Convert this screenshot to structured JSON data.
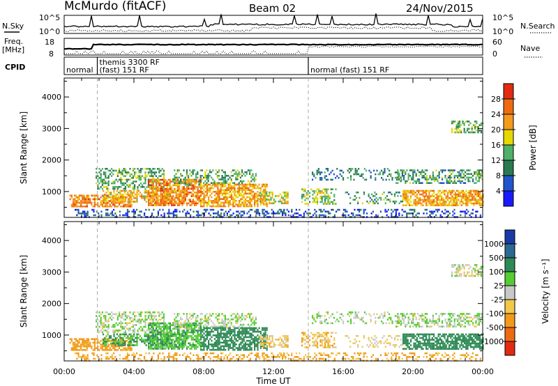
{
  "header": {
    "station": "McMurdo (fitACF)",
    "beam": "Beam 02",
    "date": "24/Nov/2015"
  },
  "noise_panel": {
    "left_label": "N.Sky",
    "right_label": "N.Search",
    "left_ticks": [
      "10^5",
      "10^0"
    ],
    "right_ticks": [
      "10^5",
      "10^0"
    ]
  },
  "freq_panel": {
    "left_label_top": "Freq.",
    "left_label_bottom": "[MHz]",
    "left_ticks": [
      "18",
      "8"
    ],
    "right_label": "Nave",
    "right_ticks": [
      "60",
      "0"
    ]
  },
  "cpid_panel": {
    "label": "CPID",
    "segments": [
      {
        "start_hour": 0.0,
        "lines": [
          "normal"
        ]
      },
      {
        "start_hour": 1.9,
        "lines": [
          "themis 3300 RF",
          "(fast) 151 RF"
        ]
      },
      {
        "start_hour": 14.0,
        "lines": [
          "normal (fast) 151 RF"
        ]
      }
    ]
  },
  "chart_data": [
    {
      "type": "heatmap",
      "name": "power",
      "ylabel": "Slant Range [km]",
      "ylim": [
        180,
        4600
      ],
      "yticks": [
        1000,
        2000,
        3000,
        4000
      ],
      "xlim_hours": [
        0,
        24
      ],
      "colorbar": {
        "label": "Power [dB]",
        "ticks": [
          "4",
          "8",
          "12",
          "16",
          "20",
          "24",
          "28"
        ],
        "colors": [
          "#1a1aff",
          "#2255cc",
          "#2a7a50",
          "#4fb06a",
          "#e6d700",
          "#f39a1a",
          "#ee6a10",
          "#e22a10"
        ]
      }
    },
    {
      "type": "heatmap",
      "name": "velocity",
      "ylabel": "Slant Range [km]",
      "ylim": [
        180,
        4600
      ],
      "yticks": [
        1000,
        2000,
        3000,
        4000
      ],
      "xlim_hours": [
        0,
        24
      ],
      "xlabel": "Time UT",
      "xticks": [
        "00:00",
        "04:00",
        "08:00",
        "12:00",
        "16:00",
        "20:00",
        "00:00"
      ],
      "colorbar": {
        "label": "Velocity [m s⁻¹]",
        "ticks": [
          "1000",
          "500",
          "100",
          "25",
          "-25",
          "-100",
          "-500",
          "-1000"
        ],
        "colors": [
          "#1a3aa8",
          "#2a6a90",
          "#2e8a55",
          "#55cc33",
          "#c8c8c8",
          "#f2c84a",
          "#f39a1a",
          "#ee6a10",
          "#e22a10"
        ]
      }
    }
  ],
  "scatter_regions": [
    {
      "t0": 0.3,
      "t1": 3.9,
      "r0": 550,
      "r1": 900,
      "p": 0.7,
      "pw": 24,
      "v": -150
    },
    {
      "t0": 1.8,
      "t1": 5.7,
      "r0": 1100,
      "r1": 1750,
      "p": 0.45,
      "pw": 13,
      "v": 20
    },
    {
      "t0": 2.2,
      "t1": 6.2,
      "r0": 650,
      "r1": 1050,
      "p": 0.55,
      "pw": 20,
      "v": 100
    },
    {
      "t0": 4.8,
      "t1": 7.8,
      "r0": 550,
      "r1": 1400,
      "p": 0.75,
      "pw": 24,
      "v": 80
    },
    {
      "t0": 6.2,
      "t1": 11.0,
      "r0": 1200,
      "r1": 1700,
      "p": 0.4,
      "pw": 13,
      "v": 20
    },
    {
      "t0": 7.8,
      "t1": 11.6,
      "r0": 550,
      "r1": 1250,
      "p": 0.7,
      "pw": 22,
      "v": 160
    },
    {
      "t0": 11.2,
      "t1": 12.8,
      "r0": 600,
      "r1": 1000,
      "p": 0.55,
      "pw": 18,
      "v": -60
    },
    {
      "t0": 13.6,
      "t1": 15.6,
      "r0": 600,
      "r1": 1100,
      "p": 0.45,
      "pw": 16,
      "v": -70
    },
    {
      "t0": 14.2,
      "t1": 19.4,
      "r0": 1350,
      "r1": 1750,
      "p": 0.25,
      "pw": 10,
      "v": 20
    },
    {
      "t0": 16.1,
      "t1": 19.6,
      "r0": 650,
      "r1": 1000,
      "p": 0.3,
      "pw": 12,
      "v": -40
    },
    {
      "t0": 19.4,
      "t1": 24.0,
      "r0": 550,
      "r1": 1050,
      "p": 0.75,
      "pw": 22,
      "v": 160
    },
    {
      "t0": 19.0,
      "t1": 24.0,
      "r0": 1250,
      "r1": 1700,
      "p": 0.5,
      "pw": 12,
      "v": 20
    },
    {
      "t0": 22.2,
      "t1": 24.0,
      "r0": 2900,
      "r1": 3250,
      "p": 0.45,
      "pw": 14,
      "v": 0
    },
    {
      "t0": 0.6,
      "t1": 24.0,
      "r0": 190,
      "r1": 450,
      "p": 0.32,
      "pw": 6,
      "v": -120
    }
  ]
}
